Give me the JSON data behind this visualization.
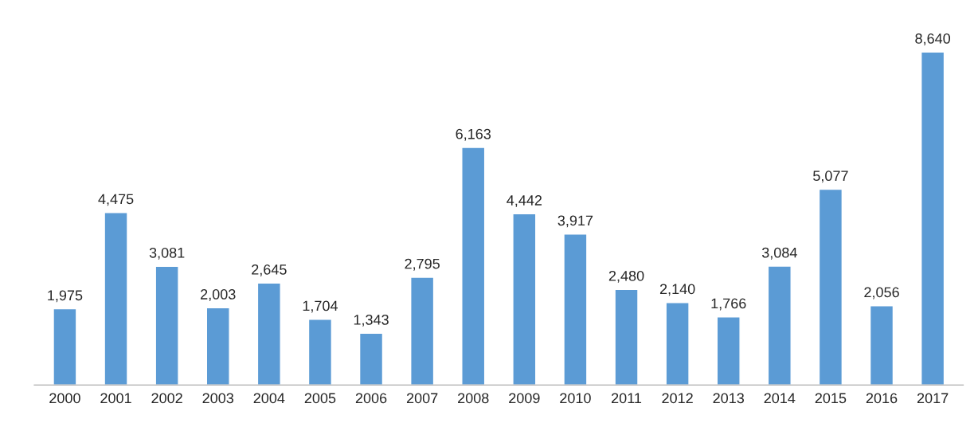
{
  "chart_data": {
    "type": "bar",
    "categories": [
      "2000",
      "2001",
      "2002",
      "2003",
      "2004",
      "2005",
      "2006",
      "2007",
      "2008",
      "2009",
      "2010",
      "2011",
      "2012",
      "2013",
      "2014",
      "2015",
      "2016",
      "2017"
    ],
    "values": [
      1975,
      4475,
      3081,
      2003,
      2645,
      1704,
      1343,
      2795,
      6163,
      4442,
      3917,
      2480,
      2140,
      1766,
      3084,
      5077,
      2056,
      8640
    ],
    "value_labels": [
      "1,975",
      "4,475",
      "3,081",
      "2,003",
      "2,645",
      "1,704",
      "1,343",
      "2,795",
      "6,163",
      "4,442",
      "3,917",
      "2,480",
      "2,140",
      "1,766",
      "3,084",
      "5,077",
      "2,056",
      "8,640"
    ],
    "color": "#5b9bd5",
    "grid": false,
    "legend": false
  }
}
